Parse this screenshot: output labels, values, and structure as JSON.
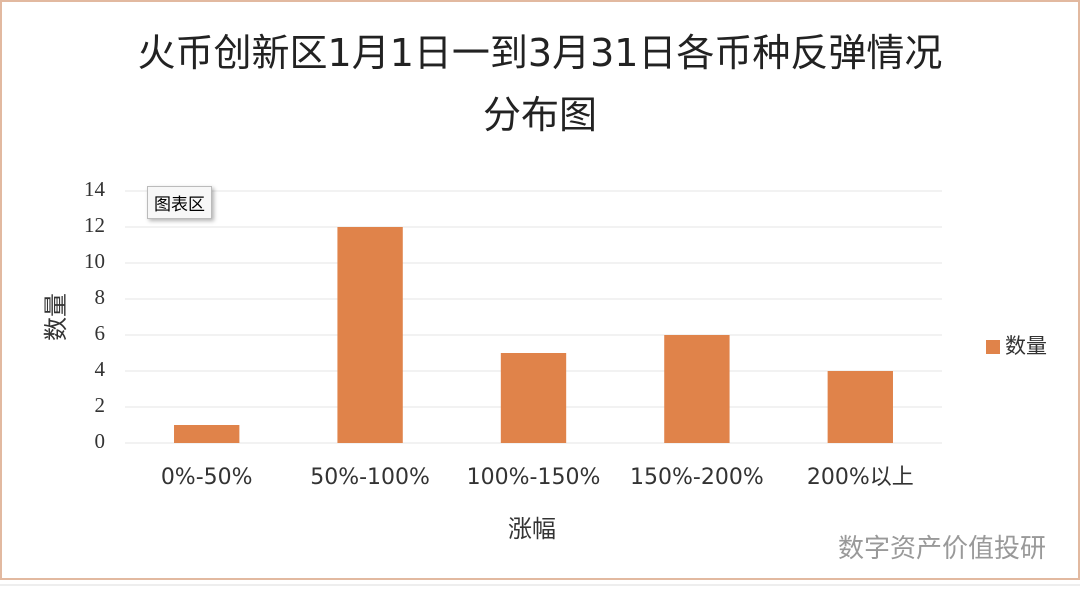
{
  "chart_data": {
    "type": "bar",
    "title": "火币创新区1月1日一到3月31日各币种反弹情况分布图",
    "x_label": "涨幅",
    "y_label": "数量",
    "categories": [
      "0%-50%",
      "50%-100%",
      "100%-150%",
      "150%-200%",
      "200%以上"
    ],
    "series": [
      {
        "name": "数量",
        "color": "#e0834a",
        "values": [
          1,
          12,
          5,
          6,
          4
        ]
      }
    ],
    "ylim": [
      0,
      14
    ],
    "yticks": [
      0,
      2,
      4,
      6,
      8,
      10,
      12,
      14
    ],
    "grid": true,
    "legend": "right",
    "tooltip": "图表区",
    "watermark": "数字资产价值投研"
  }
}
